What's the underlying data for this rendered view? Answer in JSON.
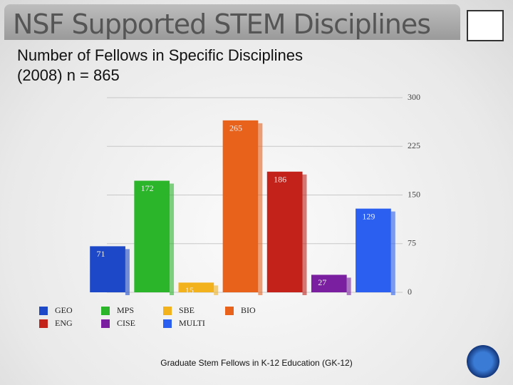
{
  "chart_data": {
    "type": "bar",
    "title": "NSF Supported STEM Disciplines",
    "subtitle": "Number of Fellows in Specific Disciplines (2008) n = 865",
    "footer": "Graduate Stem Fellows in K-12 Education (GK-12)",
    "categories": [
      "GEO",
      "MPS",
      "SBE",
      "BIO",
      "ENG",
      "CISE",
      "MULTI"
    ],
    "values": [
      71,
      172,
      15,
      265,
      186,
      27,
      129
    ],
    "colors": [
      "#1d49c8",
      "#2bb52b",
      "#f2b21e",
      "#e8621c",
      "#c2221a",
      "#7a1fa0",
      "#2b5ff0"
    ],
    "ylim": [
      0,
      300
    ],
    "yticks": [
      0,
      75,
      150,
      225,
      300
    ],
    "grid": true
  }
}
